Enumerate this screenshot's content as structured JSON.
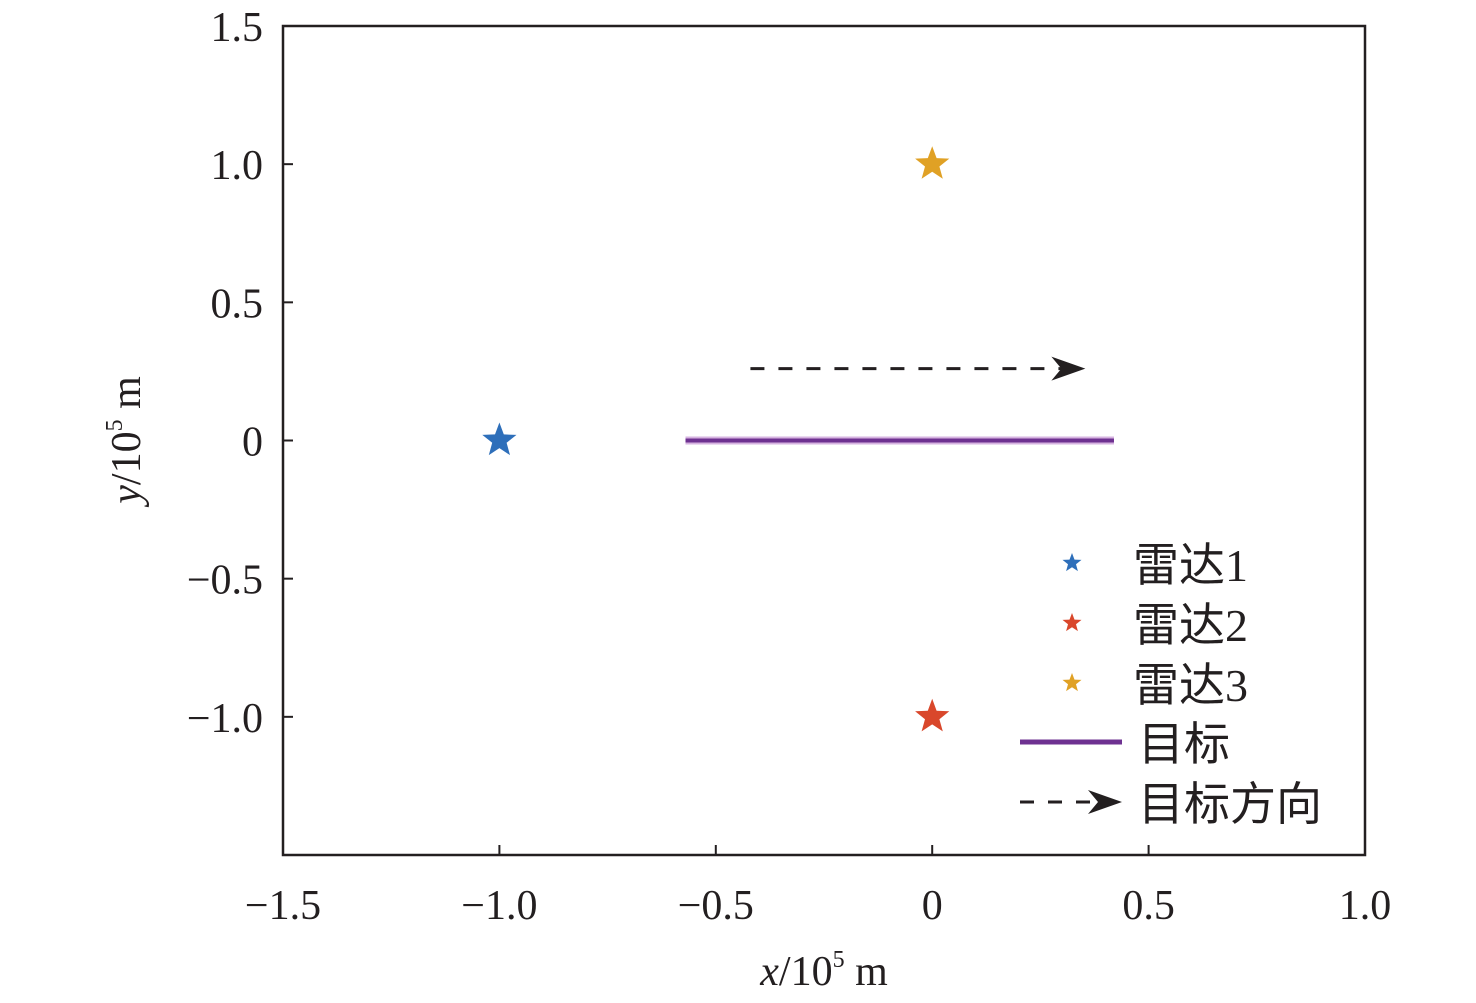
{
  "chart_data": {
    "type": "scatter",
    "title": "",
    "xlabel": {
      "var": "x",
      "unit": "/10",
      "exp": "5",
      "suffix": " m"
    },
    "ylabel": {
      "var": "y",
      "unit": "/10",
      "exp": "5",
      "suffix": " m"
    },
    "xlim": [
      -1.5,
      1.0
    ],
    "ylim": [
      -1.5,
      1.5
    ],
    "xticks": [
      -1.5,
      -1.0,
      -0.5,
      0,
      0.5,
      1.0
    ],
    "xtick_labels": [
      "−1.5",
      "−1.0",
      "−0.5",
      "0",
      "0.5",
      "1.0"
    ],
    "yticks": [
      1.5,
      1.0,
      0.5,
      0,
      -0.5,
      -1.0
    ],
    "ytick_labels": [
      "1.5",
      "1.0",
      "0.5",
      "0",
      "−0.5",
      "−1.0"
    ],
    "grid": false,
    "legend_position": "bottom-right",
    "series": [
      {
        "name": "雷达1",
        "kind": "star",
        "color": "#2e6fba",
        "x": -1.0,
        "y": 0
      },
      {
        "name": "雷达2",
        "kind": "star",
        "color": "#d9472b",
        "x": 0,
        "y": -1.0
      },
      {
        "name": "雷达3",
        "kind": "star",
        "color": "#e0a125",
        "x": 0,
        "y": 1.0
      },
      {
        "name": "目标",
        "kind": "line",
        "color": "#6e3191",
        "x": [
          -0.57,
          0.42
        ],
        "y": [
          0,
          0
        ]
      },
      {
        "name": "目标方向",
        "kind": "arrow",
        "color": "#231f20",
        "x": [
          -0.42,
          0.34
        ],
        "y": [
          0.26,
          0.26
        ]
      }
    ]
  }
}
